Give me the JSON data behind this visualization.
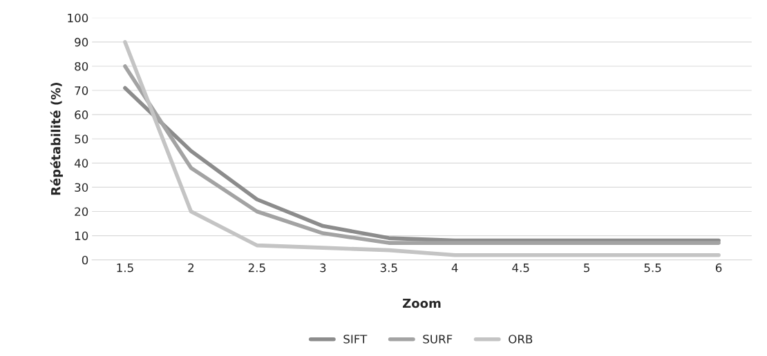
{
  "chart_data": {
    "type": "line",
    "xlabel": "Zoom",
    "ylabel": "Répétabilité (%)",
    "categories": [
      "1.5",
      "2",
      "2.5",
      "3",
      "3.5",
      "4",
      "4.5",
      "5",
      "5.5",
      "6"
    ],
    "series": [
      {
        "name": "SIFT",
        "color": "#8c8c8c",
        "values": [
          71,
          45,
          25,
          14,
          9,
          8,
          8,
          8,
          8,
          8
        ]
      },
      {
        "name": "SURF",
        "color": "#a3a3a3",
        "values": [
          80,
          38,
          20,
          11,
          7,
          7,
          7,
          7,
          7,
          7
        ]
      },
      {
        "name": "ORB",
        "color": "#c4c4c4",
        "values": [
          90,
          20,
          6,
          5,
          4,
          2,
          2,
          2,
          2,
          2
        ]
      }
    ],
    "ylim": [
      0,
      100
    ],
    "yticks": [
      0,
      10,
      20,
      30,
      40,
      50,
      60,
      70,
      80,
      90,
      100
    ],
    "grid": "y",
    "legend": "bottom",
    "marker": "none",
    "line_style": "solid"
  }
}
